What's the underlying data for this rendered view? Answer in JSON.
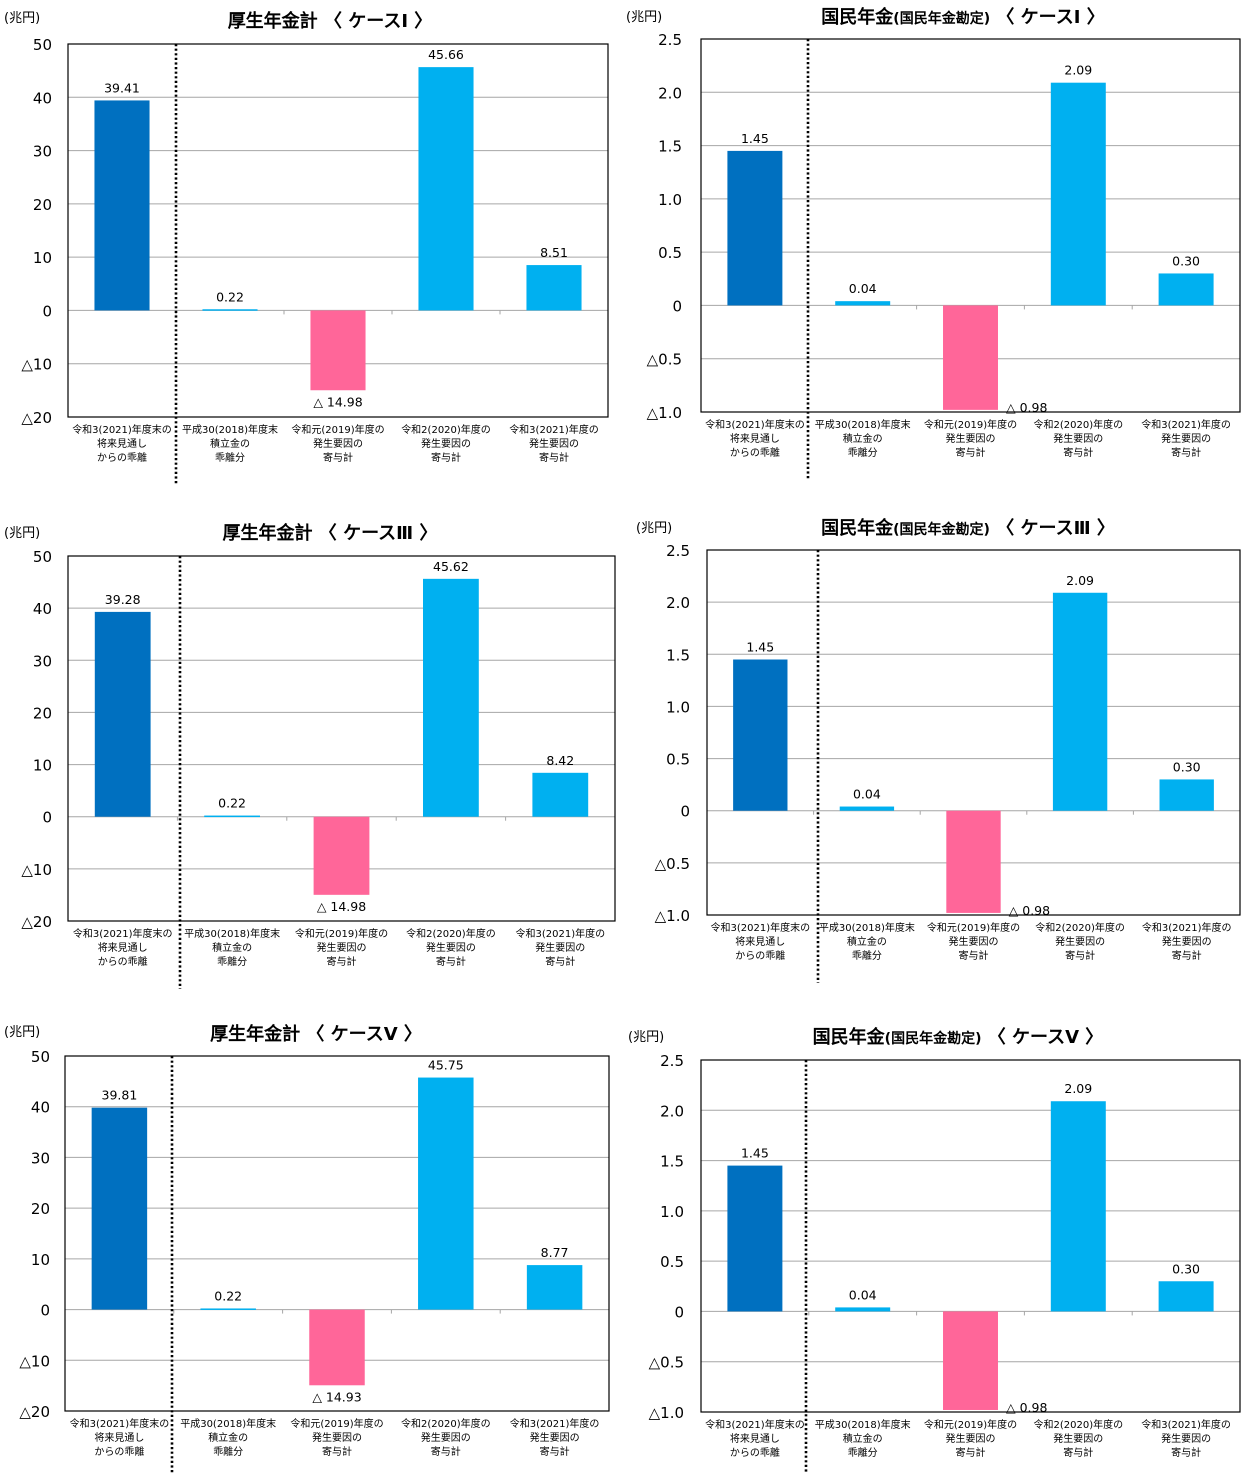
{
  "category_lines": [
    [
      "令和3(2021)年度末の",
      "将来見通し",
      "からの乖離"
    ],
    [
      "平成30(2018)年度末",
      "積立金の",
      "乖離分"
    ],
    [
      "令和元(2019)年度の",
      "発生要因の",
      "寄与計"
    ],
    [
      "令和2(2020)年度の",
      "発生要因の",
      "寄与計"
    ],
    [
      "令和3(2021)年度の",
      "発生要因の",
      "寄与計"
    ]
  ],
  "colors": {
    "bar_dark": "#0070C0",
    "bar_light": "#00B0F0",
    "bar_neg": "#FF6699",
    "grid": "#A6A6A6"
  },
  "chart_data": [
    {
      "type": "bar",
      "title_main": "厚生年金計 〈 ケースⅠ 〉",
      "title_sub": "",
      "title_tail": "",
      "unit": "(兆円)",
      "categories": [
        "令和3(2021)年度末の将来見通しからの乖離",
        "平成30(2018)年度末積立金の乖離分",
        "令和元(2019)年度の発生要因の寄与計",
        "令和2(2020)年度の発生要因の寄与計",
        "令和3(2021)年度の発生要因の寄与計"
      ],
      "values": [
        39.41,
        0.22,
        -14.98,
        45.66,
        8.51
      ],
      "value_labels": [
        "39.41",
        "0.22",
        "△ 14.98",
        "45.66",
        "8.51"
      ],
      "ylim": [
        -20,
        50
      ],
      "ytick_values": [
        50,
        40,
        30,
        20,
        10,
        0,
        -10,
        -20
      ],
      "ytick_labels": [
        "50",
        "40",
        "30",
        "20",
        "10",
        "0",
        "△10",
        "△20"
      ],
      "grid": true
    },
    {
      "type": "bar",
      "title_main": "国民年金",
      "title_sub": "(国民年金勘定)",
      "title_tail": " 〈 ケースⅠ 〉",
      "unit": "(兆円)",
      "categories": [
        "令和3(2021)年度末の将来見通しからの乖離",
        "平成30(2018)年度末積立金の乖離分",
        "令和元(2019)年度の発生要因の寄与計",
        "令和2(2020)年度の発生要因の寄与計",
        "令和3(2021)年度の発生要因の寄与計"
      ],
      "values": [
        1.45,
        0.04,
        -0.98,
        2.09,
        0.3
      ],
      "value_labels": [
        "1.45",
        "0.04",
        "△ 0.98",
        "2.09",
        "0.30"
      ],
      "ylim": [
        -1.0,
        2.5
      ],
      "ytick_values": [
        2.5,
        2.0,
        1.5,
        1.0,
        0.5,
        0,
        -0.5,
        -1.0
      ],
      "ytick_labels": [
        "2.5",
        "2.0",
        "1.5",
        "1.0",
        "0.5",
        "0",
        "△0.5",
        "△1.0"
      ],
      "grid": true
    },
    {
      "type": "bar",
      "title_main": "厚生年金計 〈 ケースⅢ 〉",
      "title_sub": "",
      "title_tail": "",
      "unit": "(兆円)",
      "categories": [
        "令和3(2021)年度末の将来見通しからの乖離",
        "平成30(2018)年度末積立金の乖離分",
        "令和元(2019)年度の発生要因の寄与計",
        "令和2(2020)年度の発生要因の寄与計",
        "令和3(2021)年度の発生要因の寄与計"
      ],
      "values": [
        39.28,
        0.22,
        -14.98,
        45.62,
        8.42
      ],
      "value_labels": [
        "39.28",
        "0.22",
        "△ 14.98",
        "45.62",
        "8.42"
      ],
      "ylim": [
        -20,
        50
      ],
      "ytick_values": [
        50,
        40,
        30,
        20,
        10,
        0,
        -10,
        -20
      ],
      "ytick_labels": [
        "50",
        "40",
        "30",
        "20",
        "10",
        "0",
        "△10",
        "△20"
      ],
      "grid": true
    },
    {
      "type": "bar",
      "title_main": "国民年金",
      "title_sub": "(国民年金勘定)",
      "title_tail": " 〈 ケースⅢ 〉",
      "unit": "(兆円)",
      "categories": [
        "令和3(2021)年度末の将来見通しからの乖離",
        "平成30(2018)年度末積立金の乖離分",
        "令和元(2019)年度の発生要因の寄与計",
        "令和2(2020)年度の発生要因の寄与計",
        "令和3(2021)年度の発生要因の寄与計"
      ],
      "values": [
        1.45,
        0.04,
        -0.98,
        2.09,
        0.3
      ],
      "value_labels": [
        "1.45",
        "0.04",
        "△ 0.98",
        "2.09",
        "0.30"
      ],
      "ylim": [
        -1.0,
        2.5
      ],
      "ytick_values": [
        2.5,
        2.0,
        1.5,
        1.0,
        0.5,
        0,
        -0.5,
        -1.0
      ],
      "ytick_labels": [
        "2.5",
        "2.0",
        "1.5",
        "1.0",
        "0.5",
        "0",
        "△0.5",
        "△1.0"
      ],
      "grid": true
    },
    {
      "type": "bar",
      "title_main": "厚生年金計 〈 ケースⅤ 〉",
      "title_sub": "",
      "title_tail": "",
      "unit": "(兆円)",
      "categories": [
        "令和3(2021)年度末の将来見通しからの乖離",
        "平成30(2018)年度末積立金の乖離分",
        "令和元(2019)年度の発生要因の寄与計",
        "令和2(2020)年度の発生要因の寄与計",
        "令和3(2021)年度の発生要因の寄与計"
      ],
      "values": [
        39.81,
        0.22,
        -14.93,
        45.75,
        8.77
      ],
      "value_labels": [
        "39.81",
        "0.22",
        "△ 14.93",
        "45.75",
        "8.77"
      ],
      "ylim": [
        -20,
        50
      ],
      "ytick_values": [
        50,
        40,
        30,
        20,
        10,
        0,
        -10,
        -20
      ],
      "ytick_labels": [
        "50",
        "40",
        "30",
        "20",
        "10",
        "0",
        "△10",
        "△20"
      ],
      "grid": true
    },
    {
      "type": "bar",
      "title_main": "国民年金",
      "title_sub": "(国民年金勘定)",
      "title_tail": " 〈 ケースⅤ 〉",
      "unit": "(兆円)",
      "categories": [
        "令和3(2021)年度末の将来見通しからの乖離",
        "平成30(2018)年度末積立金の乖離分",
        "令和元(2019)年度の発生要因の寄与計",
        "令和2(2020)年度の発生要因の寄与計",
        "令和3(2021)年度の発生要因の寄与計"
      ],
      "values": [
        1.45,
        0.04,
        -0.98,
        2.09,
        0.3
      ],
      "value_labels": [
        "1.45",
        "0.04",
        "△ 0.98",
        "2.09",
        "0.30"
      ],
      "ylim": [
        -1.0,
        2.5
      ],
      "ytick_values": [
        2.5,
        2.0,
        1.5,
        1.0,
        0.5,
        0,
        -0.5,
        -1.0
      ],
      "ytick_labels": [
        "2.5",
        "2.0",
        "1.5",
        "1.0",
        "0.5",
        "0",
        "△0.5",
        "△1.0"
      ],
      "grid": true
    }
  ]
}
